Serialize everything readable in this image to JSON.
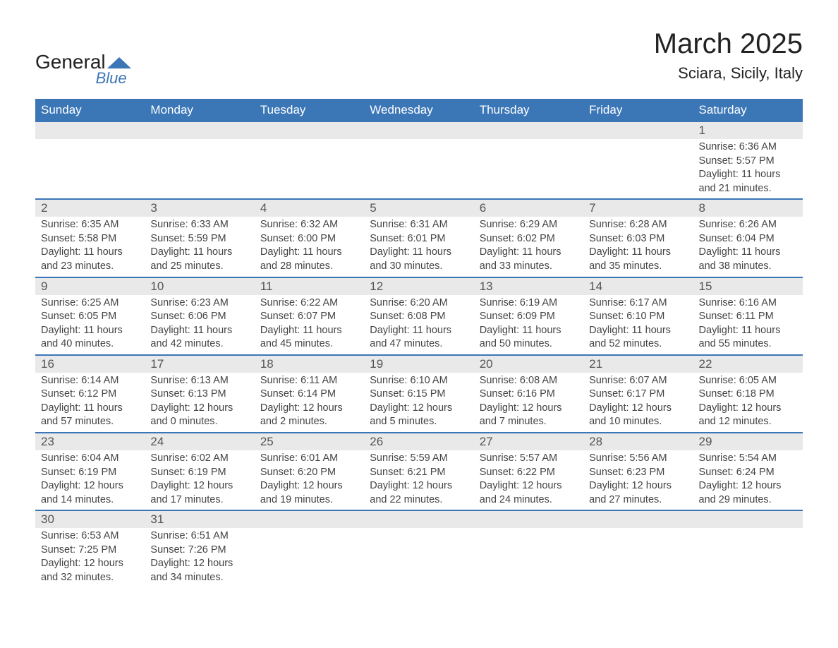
{
  "brand": {
    "name1": "General",
    "name2": "Blue",
    "accent": "#3b76b6"
  },
  "header": {
    "title": "March 2025",
    "location": "Sciara, Sicily, Italy"
  },
  "style": {
    "header_bg": "#3b76b6",
    "header_fg": "#ffffff",
    "daynum_bg": "#e9e9e9",
    "text_color": "#444444",
    "border_color": "#3b76b6",
    "title_fontsize": 40,
    "location_fontsize": 22,
    "th_fontsize": 17,
    "cell_fontsize": 14.5
  },
  "weekdays": [
    "Sunday",
    "Monday",
    "Tuesday",
    "Wednesday",
    "Thursday",
    "Friday",
    "Saturday"
  ],
  "labels": {
    "sunrise": "Sunrise: ",
    "sunset": "Sunset: ",
    "daylight": "Daylight: "
  },
  "weeks": [
    [
      null,
      null,
      null,
      null,
      null,
      null,
      {
        "n": "1",
        "sunrise": "6:36 AM",
        "sunset": "5:57 PM",
        "daylight": "11 hours and 21 minutes."
      }
    ],
    [
      {
        "n": "2",
        "sunrise": "6:35 AM",
        "sunset": "5:58 PM",
        "daylight": "11 hours and 23 minutes."
      },
      {
        "n": "3",
        "sunrise": "6:33 AM",
        "sunset": "5:59 PM",
        "daylight": "11 hours and 25 minutes."
      },
      {
        "n": "4",
        "sunrise": "6:32 AM",
        "sunset": "6:00 PM",
        "daylight": "11 hours and 28 minutes."
      },
      {
        "n": "5",
        "sunrise": "6:31 AM",
        "sunset": "6:01 PM",
        "daylight": "11 hours and 30 minutes."
      },
      {
        "n": "6",
        "sunrise": "6:29 AM",
        "sunset": "6:02 PM",
        "daylight": "11 hours and 33 minutes."
      },
      {
        "n": "7",
        "sunrise": "6:28 AM",
        "sunset": "6:03 PM",
        "daylight": "11 hours and 35 minutes."
      },
      {
        "n": "8",
        "sunrise": "6:26 AM",
        "sunset": "6:04 PM",
        "daylight": "11 hours and 38 minutes."
      }
    ],
    [
      {
        "n": "9",
        "sunrise": "6:25 AM",
        "sunset": "6:05 PM",
        "daylight": "11 hours and 40 minutes."
      },
      {
        "n": "10",
        "sunrise": "6:23 AM",
        "sunset": "6:06 PM",
        "daylight": "11 hours and 42 minutes."
      },
      {
        "n": "11",
        "sunrise": "6:22 AM",
        "sunset": "6:07 PM",
        "daylight": "11 hours and 45 minutes."
      },
      {
        "n": "12",
        "sunrise": "6:20 AM",
        "sunset": "6:08 PM",
        "daylight": "11 hours and 47 minutes."
      },
      {
        "n": "13",
        "sunrise": "6:19 AM",
        "sunset": "6:09 PM",
        "daylight": "11 hours and 50 minutes."
      },
      {
        "n": "14",
        "sunrise": "6:17 AM",
        "sunset": "6:10 PM",
        "daylight": "11 hours and 52 minutes."
      },
      {
        "n": "15",
        "sunrise": "6:16 AM",
        "sunset": "6:11 PM",
        "daylight": "11 hours and 55 minutes."
      }
    ],
    [
      {
        "n": "16",
        "sunrise": "6:14 AM",
        "sunset": "6:12 PM",
        "daylight": "11 hours and 57 minutes."
      },
      {
        "n": "17",
        "sunrise": "6:13 AM",
        "sunset": "6:13 PM",
        "daylight": "12 hours and 0 minutes."
      },
      {
        "n": "18",
        "sunrise": "6:11 AM",
        "sunset": "6:14 PM",
        "daylight": "12 hours and 2 minutes."
      },
      {
        "n": "19",
        "sunrise": "6:10 AM",
        "sunset": "6:15 PM",
        "daylight": "12 hours and 5 minutes."
      },
      {
        "n": "20",
        "sunrise": "6:08 AM",
        "sunset": "6:16 PM",
        "daylight": "12 hours and 7 minutes."
      },
      {
        "n": "21",
        "sunrise": "6:07 AM",
        "sunset": "6:17 PM",
        "daylight": "12 hours and 10 minutes."
      },
      {
        "n": "22",
        "sunrise": "6:05 AM",
        "sunset": "6:18 PM",
        "daylight": "12 hours and 12 minutes."
      }
    ],
    [
      {
        "n": "23",
        "sunrise": "6:04 AM",
        "sunset": "6:19 PM",
        "daylight": "12 hours and 14 minutes."
      },
      {
        "n": "24",
        "sunrise": "6:02 AM",
        "sunset": "6:19 PM",
        "daylight": "12 hours and 17 minutes."
      },
      {
        "n": "25",
        "sunrise": "6:01 AM",
        "sunset": "6:20 PM",
        "daylight": "12 hours and 19 minutes."
      },
      {
        "n": "26",
        "sunrise": "5:59 AM",
        "sunset": "6:21 PM",
        "daylight": "12 hours and 22 minutes."
      },
      {
        "n": "27",
        "sunrise": "5:57 AM",
        "sunset": "6:22 PM",
        "daylight": "12 hours and 24 minutes."
      },
      {
        "n": "28",
        "sunrise": "5:56 AM",
        "sunset": "6:23 PM",
        "daylight": "12 hours and 27 minutes."
      },
      {
        "n": "29",
        "sunrise": "5:54 AM",
        "sunset": "6:24 PM",
        "daylight": "12 hours and 29 minutes."
      }
    ],
    [
      {
        "n": "30",
        "sunrise": "6:53 AM",
        "sunset": "7:25 PM",
        "daylight": "12 hours and 32 minutes."
      },
      {
        "n": "31",
        "sunrise": "6:51 AM",
        "sunset": "7:26 PM",
        "daylight": "12 hours and 34 minutes."
      },
      null,
      null,
      null,
      null,
      null
    ]
  ]
}
